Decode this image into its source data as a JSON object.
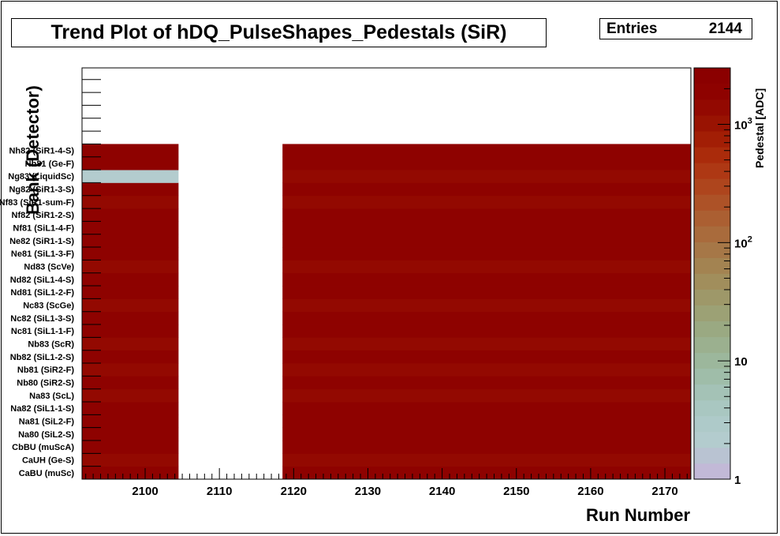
{
  "chart_data": {
    "type": "heatmap",
    "title": "Trend Plot of hDQ_PulseShapes_Pedestals (SiR)",
    "xlabel": "Run Number",
    "ylabel": "Bank (Detector)",
    "zlabel": "Pedestal [ADC]",
    "stats": {
      "label": "Entries",
      "value": "2144"
    },
    "xlim": [
      2091.5,
      2173.5
    ],
    "x_ticks": [
      "2100",
      "2110",
      "2120",
      "2130",
      "2140",
      "2150",
      "2160",
      "2170"
    ],
    "x_tick_values": [
      2100,
      2110,
      2120,
      2130,
      2140,
      2150,
      2160,
      2170
    ],
    "zscale": "log",
    "zlim": [
      1,
      3000
    ],
    "z_ticks": [
      "1",
      "10",
      "10^2",
      "10^3"
    ],
    "z_tick_values": [
      1,
      10,
      100,
      1000
    ],
    "y_labels": [
      "CaBU (muSc)",
      "CaUH (Ge-S)",
      "CbBU (muScA)",
      "Na80 (SiL2-S)",
      "Na81 (SiL2-F)",
      "Na82 (SiL1-1-S)",
      "Na83 (ScL)",
      "Nb80 (SiR2-S)",
      "Nb81 (SiR2-F)",
      "Nb82 (SiL1-2-S)",
      "Nb83 (ScR)",
      "Nc81 (SiL1-1-F)",
      "Nc82 (SiL1-3-S)",
      "Nc83 (ScGe)",
      "Nd81 (SiL1-2-F)",
      "Nd82 (SiL1-4-S)",
      "Nd83 (ScVe)",
      "Ne81 (SiL1-3-F)",
      "Ne82 (SiR1-1-S)",
      "Nf81 (SiL1-4-F)",
      "Nf82 (SiR1-2-S)",
      "Nf83 (SiR1-sum-F)",
      "Ng82 (SiR1-3-S)",
      "Ng83 (LiquidSc)",
      "Nh81 (Ge-F)",
      "Nh82 (SiR1-4-S)"
    ],
    "run_ranges": [
      [
        2092,
        2104
      ],
      [
        2119,
        2173
      ]
    ],
    "rows": [
      {
        "bank": "CaBU (muSc)",
        "pedestal": 2100
      },
      {
        "bank": "CaUH (Ge-S)",
        "pedestal": 1300
      },
      {
        "bank": "CbBU (muScA)",
        "pedestal": 2100
      },
      {
        "bank": "Na80 (SiL2-S)",
        "pedestal": 2100
      },
      {
        "bank": "Na81 (SiL2-F)",
        "pedestal": 1700
      },
      {
        "bank": "Na82 (SiL1-1-S)",
        "pedestal": 2100
      },
      {
        "bank": "Na83 (ScL)",
        "pedestal": 1600
      },
      {
        "bank": "Nb80 (SiR2-S)",
        "pedestal": 2100
      },
      {
        "bank": "Nb81 (SiR2-F)",
        "pedestal": 1600
      },
      {
        "bank": "Nb82 (SiL1-2-S)",
        "pedestal": 2100
      },
      {
        "bank": "Nb83 (ScR)",
        "pedestal": 1600
      },
      {
        "bank": "Nc81 (SiL1-1-F)",
        "pedestal": 2100
      },
      {
        "bank": "Nc82 (SiL1-3-S)",
        "pedestal": 2100
      },
      {
        "bank": "Nc83 (ScGe)",
        "pedestal": 1500
      },
      {
        "bank": "Nd81 (SiL1-2-F)",
        "pedestal": 2100
      },
      {
        "bank": "Nd82 (SiL1-4-S)",
        "pedestal": 2100
      },
      {
        "bank": "Nd83 (ScVe)",
        "pedestal": 1500
      },
      {
        "bank": "Ne81 (SiL1-3-F)",
        "pedestal": 2100
      },
      {
        "bank": "Ne82 (SiR1-1-S)",
        "pedestal": 2100
      },
      {
        "bank": "Nf81 (SiL1-4-F)",
        "pedestal": 1700
      },
      {
        "bank": "Nf82 (SiR1-2-S)",
        "pedestal": 2100
      },
      {
        "bank": "Nf83 (SiR1-sum-F)",
        "pedestal": 1500
      },
      {
        "bank": "Ng82 (SiR1-3-S)",
        "pedestal": 2100
      },
      {
        "bank": "Ng83 (LiquidSc)",
        "pedestal": 1500,
        "first_range_pedestal": 2
      },
      {
        "bank": "Nh81 (Ge-F)",
        "pedestal": 1700
      },
      {
        "bank": "Nh82 (SiR1-4-S)",
        "pedestal": 2100
      }
    ],
    "palette": [
      "#c2b9d7",
      "#b9c3d2",
      "#b3ccce",
      "#aecac9",
      "#a9c7c1",
      "#a4c2b6",
      "#9fbda9",
      "#9cb79c",
      "#9bb08f",
      "#9aa982",
      "#9ca175",
      "#9e9869",
      "#a18e5c",
      "#a38351",
      "#a67747",
      "#a96b3c",
      "#ab5f32",
      "#ad5227",
      "#ae451d",
      "#ae3814",
      "#aa2b0b",
      "#a21e05",
      "#991302",
      "#930901",
      "#8e0200",
      "#8b0000"
    ],
    "grid": false,
    "colorbar": "right"
  }
}
